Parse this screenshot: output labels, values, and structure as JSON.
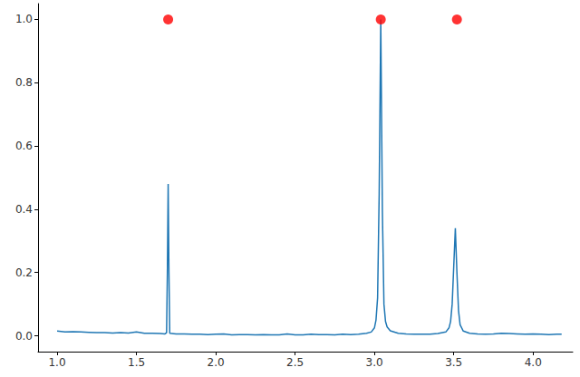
{
  "chart_data": {
    "type": "line",
    "xlim": [
      0.88,
      4.25
    ],
    "ylim": [
      -0.05,
      1.05
    ],
    "xticks": [
      {
        "value": 1,
        "label": "1.0"
      },
      1.5,
      {
        "value": 2,
        "label": "2.0"
      },
      2.5,
      {
        "value": 3,
        "label": "3.0"
      },
      3.5,
      {
        "value": 4,
        "label": "4.0"
      }
    ],
    "yticks": [
      {
        "value": 0,
        "label": "0.0"
      },
      0.2,
      0.4,
      0.6,
      0.8,
      {
        "value": 1,
        "label": "1.0"
      }
    ],
    "grid": false,
    "series": [
      {
        "type": "line",
        "color": "#1f77b4",
        "line_style": "solid",
        "x": [
          1.0,
          1.05,
          1.1,
          1.15,
          1.2,
          1.25,
          1.3,
          1.35,
          1.4,
          1.45,
          1.5,
          1.55,
          1.6,
          1.65,
          1.68,
          1.69,
          1.695,
          1.7,
          1.705,
          1.71,
          1.75,
          1.8,
          1.85,
          1.9,
          1.95,
          2.0,
          2.05,
          2.1,
          2.15,
          2.2,
          2.25,
          2.3,
          2.35,
          2.4,
          2.45,
          2.5,
          2.55,
          2.6,
          2.65,
          2.7,
          2.75,
          2.8,
          2.85,
          2.9,
          2.95,
          2.98,
          3.0,
          3.01,
          3.02,
          3.03,
          3.04,
          3.05,
          3.06,
          3.07,
          3.08,
          3.1,
          3.15,
          3.2,
          3.25,
          3.3,
          3.35,
          3.4,
          3.45,
          3.47,
          3.48,
          3.49,
          3.5,
          3.51,
          3.52,
          3.53,
          3.54,
          3.56,
          3.6,
          3.65,
          3.7,
          3.75,
          3.8,
          3.85,
          3.9,
          3.95,
          4.0,
          4.05,
          4.1,
          4.15,
          4.18
        ],
        "values": [
          0.015,
          0.012,
          0.013,
          0.012,
          0.011,
          0.01,
          0.01,
          0.009,
          0.01,
          0.009,
          0.012,
          0.008,
          0.008,
          0.007,
          0.006,
          0.01,
          0.2,
          0.48,
          0.2,
          0.008,
          0.006,
          0.006,
          0.005,
          0.005,
          0.004,
          0.005,
          0.006,
          0.003,
          0.004,
          0.004,
          0.003,
          0.004,
          0.003,
          0.003,
          0.006,
          0.003,
          0.003,
          0.005,
          0.004,
          0.004,
          0.003,
          0.005,
          0.004,
          0.005,
          0.008,
          0.012,
          0.025,
          0.05,
          0.12,
          0.45,
          1.0,
          0.4,
          0.1,
          0.045,
          0.028,
          0.016,
          0.008,
          0.006,
          0.005,
          0.005,
          0.005,
          0.007,
          0.012,
          0.025,
          0.045,
          0.1,
          0.22,
          0.34,
          0.2,
          0.08,
          0.035,
          0.015,
          0.008,
          0.006,
          0.005,
          0.006,
          0.008,
          0.007,
          0.006,
          0.005,
          0.006,
          0.005,
          0.004,
          0.005,
          0.005
        ]
      },
      {
        "type": "scatter",
        "color": "#ff0000",
        "marker": "circle",
        "x": [
          1.7,
          3.04,
          3.52
        ],
        "values": [
          1.0,
          1.0,
          1.0
        ]
      }
    ]
  }
}
